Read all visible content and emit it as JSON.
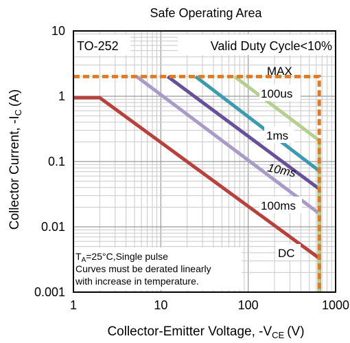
{
  "chart_data": {
    "type": "line",
    "title": "Safe Operating Area",
    "xlabel": {
      "main": "Collector-Emitter Voltage, -V",
      "sub": "CE",
      "unit": "(V)"
    },
    "ylabel": {
      "main": "Collector Current, -I",
      "sub": "C",
      "unit": "(A)"
    },
    "x_scale": "log",
    "y_scale": "log",
    "xlim": [
      1,
      1000
    ],
    "ylim": [
      0.001,
      10
    ],
    "x_ticks": [
      "1",
      "10",
      "100",
      "1000"
    ],
    "y_ticks": [
      "0.001",
      "0.01",
      "0.1",
      "1",
      "10"
    ],
    "grid": true,
    "annotations": {
      "package": "TO-252",
      "duty": "Valid Duty Cycle<10%",
      "note_line1_prefix": "T",
      "note_line1_sub": "A",
      "note_line1_rest": "=25°C,Single pulse",
      "note_line2": "Curves must be derated linearly",
      "note_line3": "with increase in temperature."
    },
    "series": [
      {
        "name": "MAX",
        "color": "#e07b22",
        "dash": true,
        "points": [
          [
            1,
            2
          ],
          [
            650,
            2
          ],
          [
            650,
            0.001
          ]
        ]
      },
      {
        "name": "100us",
        "color": "#b5d08e",
        "points": [
          [
            70,
            2
          ],
          [
            650,
            0.21
          ],
          [
            650,
            0.001
          ]
        ]
      },
      {
        "name": "1ms",
        "color": "#3b9bb1",
        "points": [
          [
            25,
            2
          ],
          [
            650,
            0.072
          ],
          [
            650,
            0.001
          ]
        ]
      },
      {
        "name": "10ms",
        "color": "#66509c",
        "points": [
          [
            12,
            2
          ],
          [
            650,
            0.038
          ],
          [
            650,
            0.001
          ]
        ]
      },
      {
        "name": "100ms",
        "color": "#a89bc9",
        "points": [
          [
            5.3,
            2
          ],
          [
            650,
            0.016
          ],
          [
            650,
            0.001
          ]
        ]
      },
      {
        "name": "DC",
        "color": "#b8413c",
        "points": [
          [
            1,
            0.95
          ],
          [
            2,
            0.95
          ],
          [
            650,
            0.0033
          ],
          [
            650,
            0.001
          ]
        ]
      }
    ],
    "series_labels": [
      "MAX",
      "100us",
      "1ms",
      "10ms",
      "100ms",
      "DC"
    ]
  }
}
